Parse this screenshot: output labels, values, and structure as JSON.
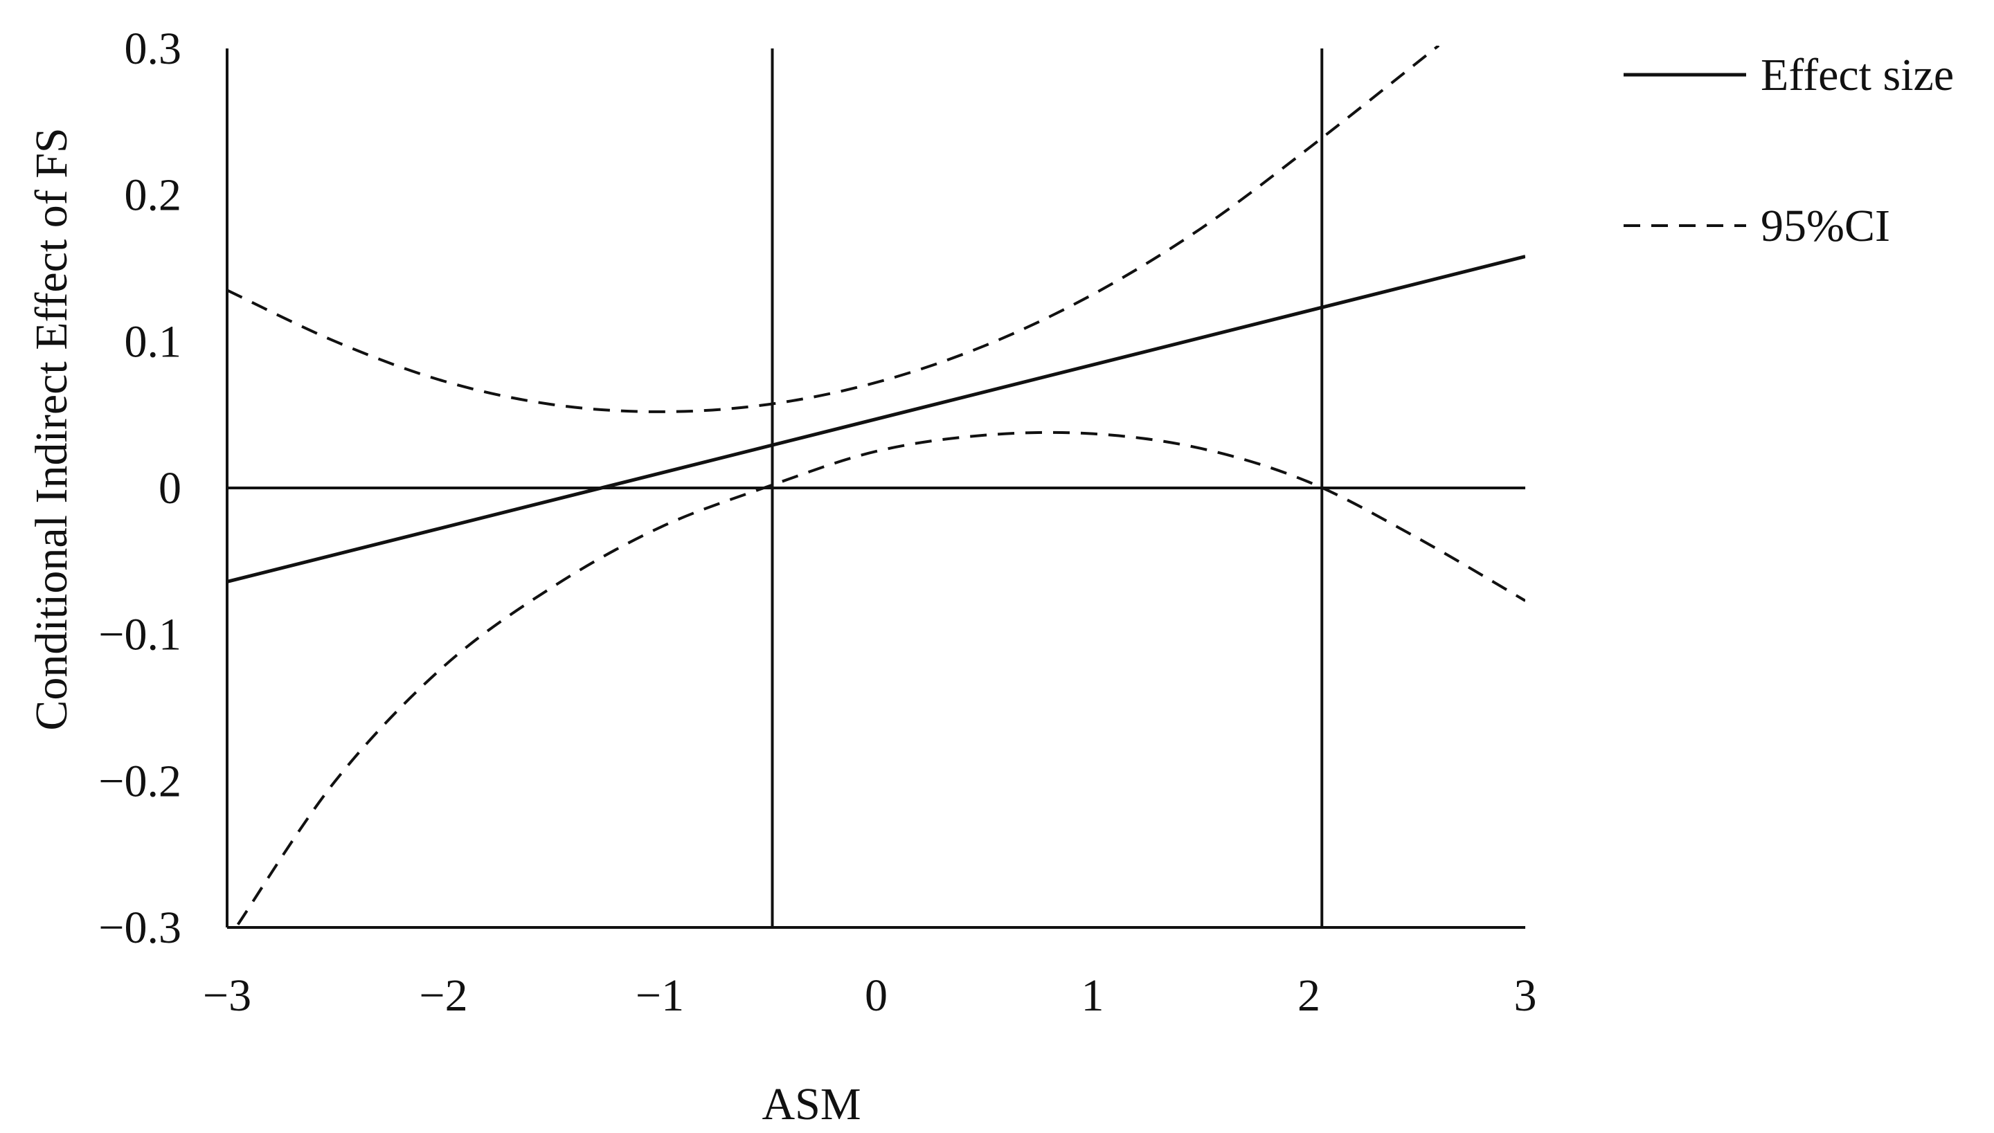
{
  "chart_data": {
    "type": "line",
    "title": "",
    "xlabel": "ASM",
    "ylabel": "Conditional Indirect Effect of FS",
    "xlim": [
      -3,
      3
    ],
    "ylim": [
      -0.3,
      0.3
    ],
    "x_ticks": [
      -3,
      -2,
      -1,
      0,
      1,
      2,
      3
    ],
    "x_tick_labels": [
      "−3",
      "−2",
      "−1",
      "0",
      "1",
      "2",
      "3"
    ],
    "y_ticks": [
      0.3,
      0.2,
      0.1,
      0,
      -0.1,
      -0.2,
      -0.3
    ],
    "y_tick_labels": [
      "0.3",
      "0.2",
      "0.1",
      "0",
      "−0.1",
      "−0.2",
      "−0.3"
    ],
    "grid": false,
    "legend_position": "top-right",
    "reference_lines": {
      "horizontal_y": [
        0
      ],
      "vertical_x": [
        -0.48,
        2.06
      ]
    },
    "series": [
      {
        "name": "Effect size",
        "style": "solid",
        "color": "#111111",
        "x": [
          -3,
          3
        ],
        "y": [
          -0.064,
          0.158
        ]
      },
      {
        "name": "95%CI",
        "style": "dashed",
        "color": "#111111",
        "x": [
          -3,
          -2.5,
          -2,
          -1.5,
          -1,
          -0.5,
          0,
          0.5,
          1,
          1.5,
          2,
          2.6
        ],
        "y": [
          0.135,
          0.1,
          0.073,
          0.057,
          0.052,
          0.057,
          0.072,
          0.097,
          0.132,
          0.177,
          0.232,
          0.302
        ]
      },
      {
        "name": "",
        "style": "dashed",
        "color": "#111111",
        "x": [
          -2.95,
          -2.5,
          -2,
          -1.5,
          -1,
          -0.5,
          0,
          0.5,
          1,
          1.5,
          2,
          2.5,
          3
        ],
        "y": [
          -0.298,
          -0.2,
          -0.122,
          -0.068,
          -0.027,
          0.001,
          0.025,
          0.036,
          0.037,
          0.027,
          0.004,
          -0.034,
          -0.077
        ]
      }
    ]
  }
}
